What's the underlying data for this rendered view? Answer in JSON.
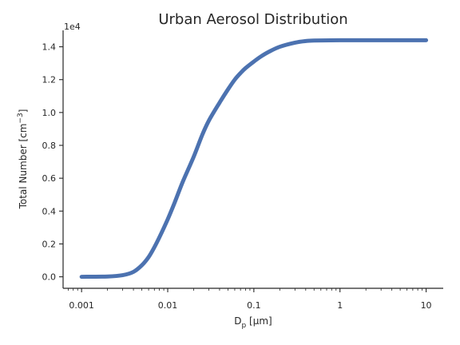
{
  "chart_data": {
    "type": "line",
    "title": "Urban Aerosol Distribution",
    "xlabel_main": "D",
    "xlabel_sub": "p",
    "xlabel_unit": " [μm]",
    "ylabel_main": "Total Number [cm",
    "ylabel_sup": "−3",
    "ylabel_end": "]",
    "y_offset_label": "1e4",
    "xscale": "log",
    "xlim": [
      0.00061,
      15.8
    ],
    "ylim": [
      -0.07,
      1.5
    ],
    "xticks": [
      {
        "value": 0.001,
        "label": "0.001"
      },
      {
        "value": 0.01,
        "label": "0.01"
      },
      {
        "value": 0.1,
        "label": "0.1"
      },
      {
        "value": 1,
        "label": "1"
      },
      {
        "value": 10,
        "label": "10"
      }
    ],
    "yticks": [
      {
        "value": 0.0,
        "label": "0.0"
      },
      {
        "value": 0.2,
        "label": "0.2"
      },
      {
        "value": 0.4,
        "label": "0.4"
      },
      {
        "value": 0.6,
        "label": "0.6"
      },
      {
        "value": 0.8,
        "label": "0.8"
      },
      {
        "value": 1.0,
        "label": "1.0"
      },
      {
        "value": 1.2,
        "label": "1.2"
      },
      {
        "value": 1.4,
        "label": "1.4"
      }
    ],
    "grid": false,
    "series": [
      {
        "color": "#4c72b0",
        "x": [
          0.001,
          0.002,
          0.003,
          0.004,
          0.005,
          0.006,
          0.007,
          0.008,
          0.01,
          0.012,
          0.015,
          0.02,
          0.025,
          0.03,
          0.04,
          0.05,
          0.06,
          0.07,
          0.08,
          0.1,
          0.12,
          0.15,
          0.2,
          0.3,
          0.4,
          0.5,
          1,
          2,
          5,
          10
        ],
        "y": [
          0.0,
          0.002,
          0.01,
          0.03,
          0.07,
          0.12,
          0.18,
          0.24,
          0.35,
          0.45,
          0.58,
          0.73,
          0.86,
          0.95,
          1.06,
          1.14,
          1.2,
          1.24,
          1.27,
          1.31,
          1.34,
          1.37,
          1.4,
          1.425,
          1.435,
          1.438,
          1.44,
          1.44,
          1.44,
          1.44
        ]
      }
    ]
  }
}
